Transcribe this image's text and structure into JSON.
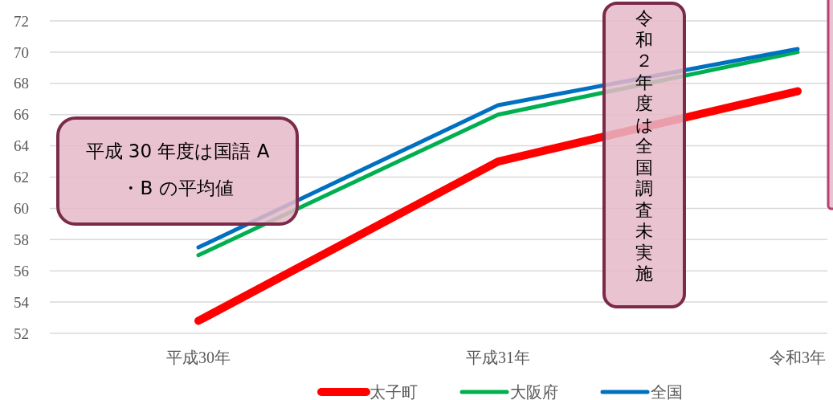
{
  "chart_data": {
    "type": "line",
    "categories": [
      "平成30年",
      "平成31年",
      "令和3年"
    ],
    "series": [
      {
        "name": "太子町",
        "color": "#ff0000",
        "values": [
          52.8,
          63.0,
          67.5
        ]
      },
      {
        "name": "大阪府",
        "color": "#00b050",
        "values": [
          57.0,
          66.0,
          70.0
        ]
      },
      {
        "name": "全国",
        "color": "#0070c0",
        "values": [
          57.5,
          66.6,
          70.2
        ]
      }
    ],
    "ylim": [
      52,
      72
    ],
    "yticks": [
      52,
      54,
      56,
      58,
      60,
      62,
      64,
      66,
      68,
      70,
      72
    ],
    "grid": "y",
    "legend": "bottom",
    "marker": "none",
    "line_style": "solid",
    "annotations": [
      "平成 30 年度は国語 A・B の平均値",
      "令和２年度は全国調査未実施"
    ]
  }
}
